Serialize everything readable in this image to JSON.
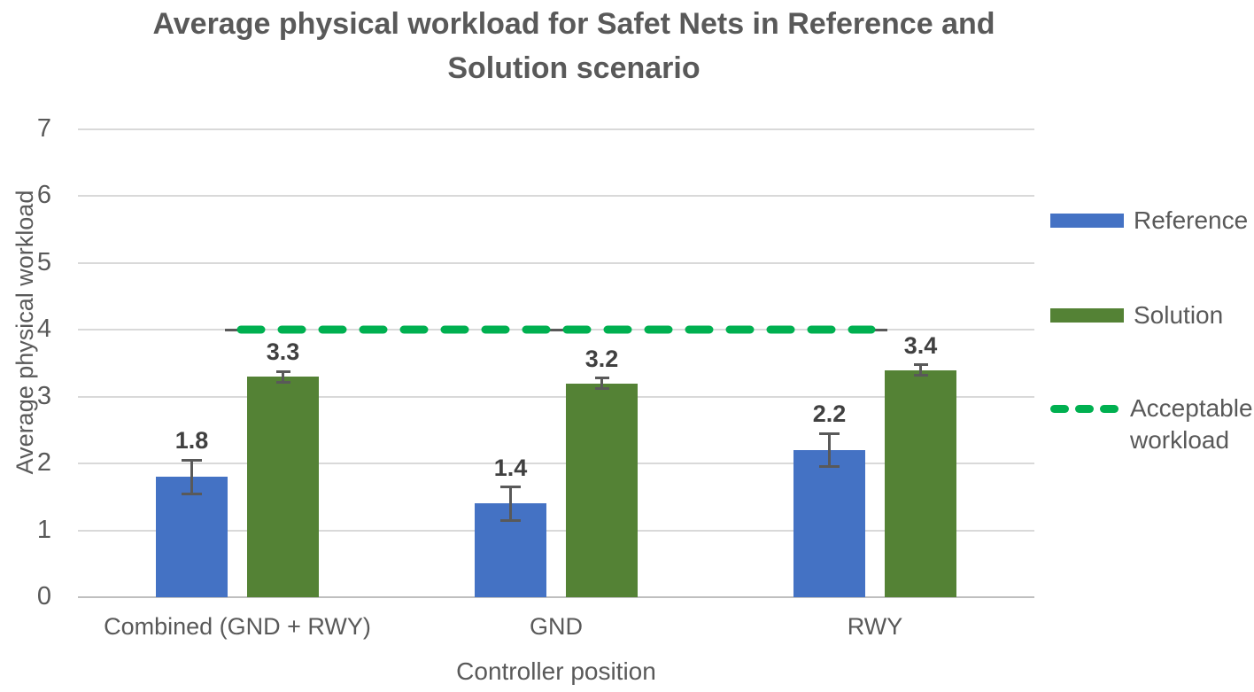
{
  "chart_data": {
    "type": "bar",
    "title": "Average physical workload for Safet Nets in Reference and Solution scenario",
    "xlabel": "Controller position",
    "ylabel": "Average physical workload",
    "ylim": [
      0,
      7
    ],
    "yticks": [
      0,
      1,
      2,
      3,
      4,
      5,
      6,
      7
    ],
    "grid": "horizontal",
    "legend_position": "right",
    "categories": [
      "Combined (GND + RWY)",
      "GND",
      "RWY"
    ],
    "series": [
      {
        "name": "Reference",
        "color": "#4472c4",
        "values": [
          1.8,
          1.4,
          2.2
        ],
        "errors": [
          0.25,
          0.25,
          0.25
        ]
      },
      {
        "name": "Solution",
        "color": "#548235",
        "values": [
          3.3,
          3.2,
          3.4
        ],
        "errors": [
          0.08,
          0.08,
          0.08
        ]
      }
    ],
    "data_labels": [
      "1.8",
      "3.3",
      "1.4",
      "3.2",
      "2.2",
      "3.4"
    ],
    "reference_line": {
      "name": "Acceptable workload",
      "value": 4,
      "color": "#00b050",
      "style": "dashed"
    },
    "colors": {
      "axis_text": "#595959",
      "data_label_text": "#404040",
      "gridline": "#d9d9d9",
      "axis_line": "#bfbfbf",
      "error_bar": "#595959"
    }
  }
}
